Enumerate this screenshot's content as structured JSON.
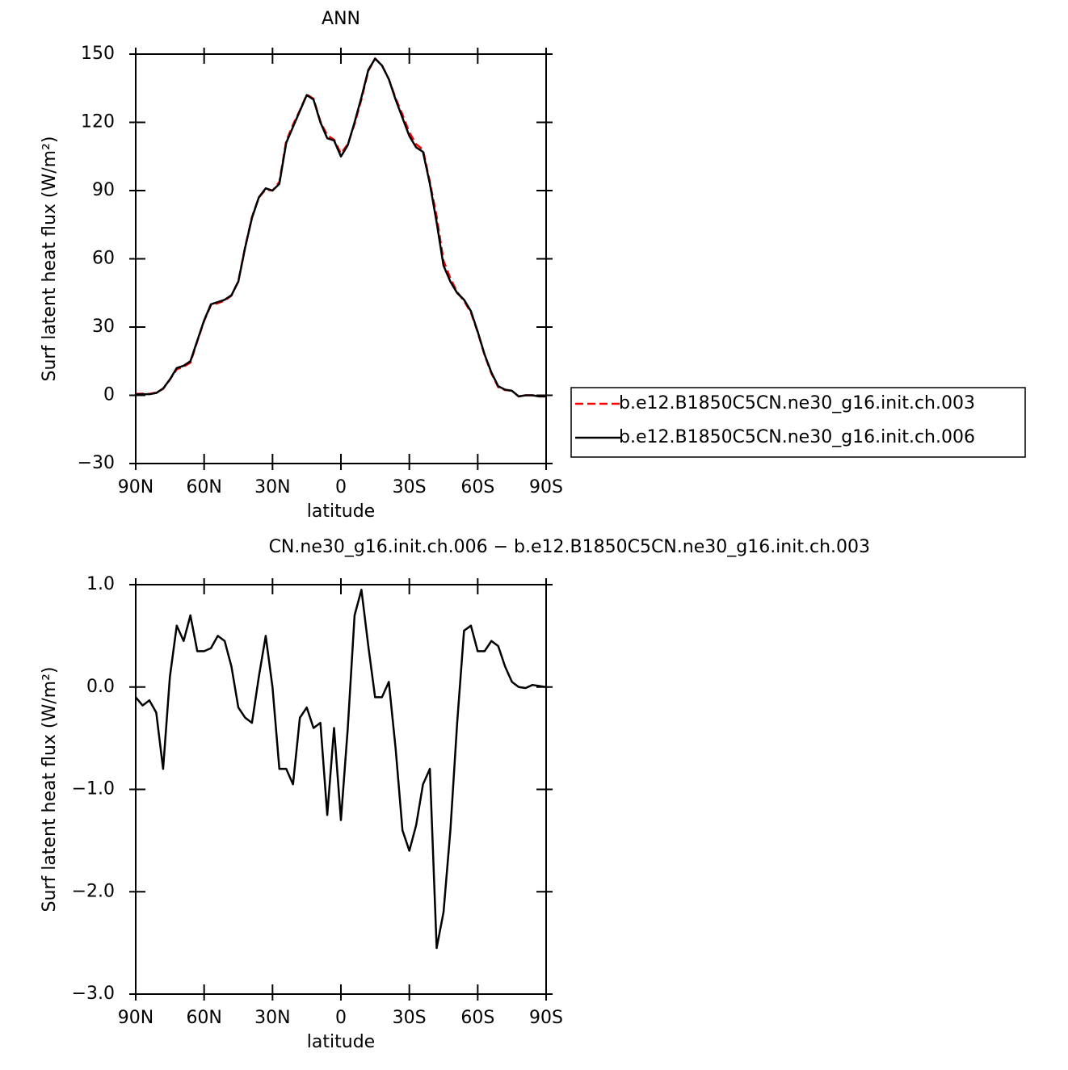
{
  "chart_data": [
    {
      "type": "line",
      "title": "ANN",
      "x_label": "latitude",
      "y_label": "Surf latent heat flux (W/m²)",
      "x": [
        90,
        87,
        84,
        81,
        78,
        75,
        72,
        69,
        66,
        63,
        60,
        57,
        54,
        51,
        48,
        45,
        42,
        39,
        36,
        33,
        30,
        27,
        24,
        21,
        18,
        15,
        12,
        9,
        6,
        3,
        0,
        -3,
        -6,
        -9,
        -12,
        -15,
        -18,
        -21,
        -24,
        -27,
        -30,
        -33,
        -36,
        -39,
        -42,
        -45,
        -48,
        -51,
        -54,
        -57,
        -60,
        -63,
        -66,
        -69,
        -72,
        -75,
        -78,
        -81,
        -84,
        -87,
        -90
      ],
      "xlim": [
        90,
        -90
      ],
      "xticks": [
        {
          "value": 90,
          "label": "90N"
        },
        {
          "value": 60,
          "label": "60N"
        },
        {
          "value": 30,
          "label": "30N"
        },
        0,
        {
          "value": -30,
          "label": "30S"
        },
        {
          "value": -60,
          "label": "60S"
        },
        {
          "value": -90,
          "label": "90S"
        }
      ],
      "ylim": [
        -30,
        150
      ],
      "yticks": [
        {
          "value": -30,
          "label": "−30"
        },
        0,
        30,
        60,
        90,
        120,
        150
      ],
      "legend": "outside-right",
      "series": [
        {
          "name": "b.e12.B1850C5CN.ne30_g16.init.ch.003",
          "color": "#ff0000",
          "line_style": "dashed",
          "values": [
            0.6,
            0.7,
            0.6,
            1.25,
            2.8,
            6.9,
            11.4,
            12.6,
            14.3,
            23.7,
            32.7,
            39.6,
            40.5,
            41.6,
            43.8,
            50.2,
            65.3,
            78.4,
            86.9,
            90.5,
            90,
            93.8,
            111.8,
            119,
            125.3,
            132.2,
            130.4,
            120.4,
            114.3,
            112.4,
            106.3,
            110.4,
            119.3,
            130.1,
            142.6,
            148.1,
            145.1,
            139,
            130.6,
            123.4,
            115.6,
            110.4,
            108,
            93.8,
            78.6,
            59.2,
            51.4,
            45.4,
            41.5,
            36.4,
            27.7,
            17.7,
            9.6,
            3.6,
            2.3,
            2,
            -0.5,
            0,
            0,
            -0.5,
            -0.5
          ]
        },
        {
          "name": "b.e12.B1850C5CN.ne30_g16.init.ch.006",
          "color": "#000000",
          "line_style": "solid",
          "values": [
            0.5,
            0.5,
            0.5,
            1,
            3,
            7,
            12,
            13,
            15,
            24,
            33,
            40,
            41,
            42,
            44,
            50,
            65,
            78,
            87,
            91,
            90,
            93,
            111,
            118,
            125,
            132,
            130,
            120,
            113,
            112,
            105,
            110,
            120,
            131,
            143,
            148,
            145,
            139,
            130,
            122,
            114,
            109,
            107,
            93,
            76,
            57,
            50,
            45,
            42,
            37,
            28,
            18,
            10,
            4,
            2.5,
            2,
            -0.5,
            0,
            0,
            -0.5,
            -0.5
          ]
        }
      ]
    },
    {
      "type": "line",
      "title": "CN.ne30_g16.init.ch.006 − b.e12.B1850C5CN.ne30_g16.init.ch.003",
      "x_label": "latitude",
      "y_label": "Surf latent heat flux (W/m²)",
      "x": [
        90,
        87,
        84,
        81,
        78,
        75,
        72,
        69,
        66,
        63,
        60,
        57,
        54,
        51,
        48,
        45,
        42,
        39,
        36,
        33,
        30,
        27,
        24,
        21,
        18,
        15,
        12,
        9,
        6,
        3,
        0,
        -3,
        -6,
        -9,
        -12,
        -15,
        -18,
        -21,
        -24,
        -27,
        -30,
        -33,
        -36,
        -39,
        -42,
        -45,
        -48,
        -51,
        -54,
        -57,
        -60,
        -63,
        -66,
        -69,
        -72,
        -75,
        -78,
        -81,
        -84,
        -87,
        -90
      ],
      "xlim": [
        90,
        -90
      ],
      "xticks": [
        {
          "value": 90,
          "label": "90N"
        },
        {
          "value": 60,
          "label": "60N"
        },
        {
          "value": 30,
          "label": "30N"
        },
        0,
        {
          "value": -30,
          "label": "30S"
        },
        {
          "value": -60,
          "label": "60S"
        },
        {
          "value": -90,
          "label": "90S"
        }
      ],
      "ylim": [
        -3,
        1
      ],
      "yticks": [
        {
          "value": -3,
          "label": "−3.0"
        },
        {
          "value": -2,
          "label": "−2.0"
        },
        {
          "value": -1,
          "label": "−1.0"
        },
        {
          "value": 0,
          "label": "0.0"
        },
        {
          "value": 1,
          "label": "1.0"
        }
      ],
      "series": [
        {
          "color": "#000000",
          "line_style": "solid",
          "values": [
            -0.1,
            -0.18,
            -0.13,
            -0.25,
            -0.8,
            0.1,
            0.6,
            0.45,
            0.7,
            0.35,
            0.35,
            0.38,
            0.5,
            0.45,
            0.2,
            -0.2,
            -0.3,
            -0.35,
            0.1,
            0.5,
            0,
            -0.8,
            -0.8,
            -0.95,
            -0.3,
            -0.2,
            -0.4,
            -0.35,
            -1.25,
            -0.4,
            -1.3,
            -0.4,
            0.7,
            0.95,
            0.4,
            -0.1,
            -0.1,
            0.05,
            -0.6,
            -1.4,
            -1.6,
            -1.35,
            -0.95,
            -0.8,
            -2.55,
            -2.2,
            -1.4,
            -0.35,
            0.55,
            0.6,
            0.35,
            0.35,
            0.45,
            0.4,
            0.2,
            0.05,
            0,
            -0.01,
            0.02,
            0.01,
            0
          ]
        }
      ]
    }
  ]
}
